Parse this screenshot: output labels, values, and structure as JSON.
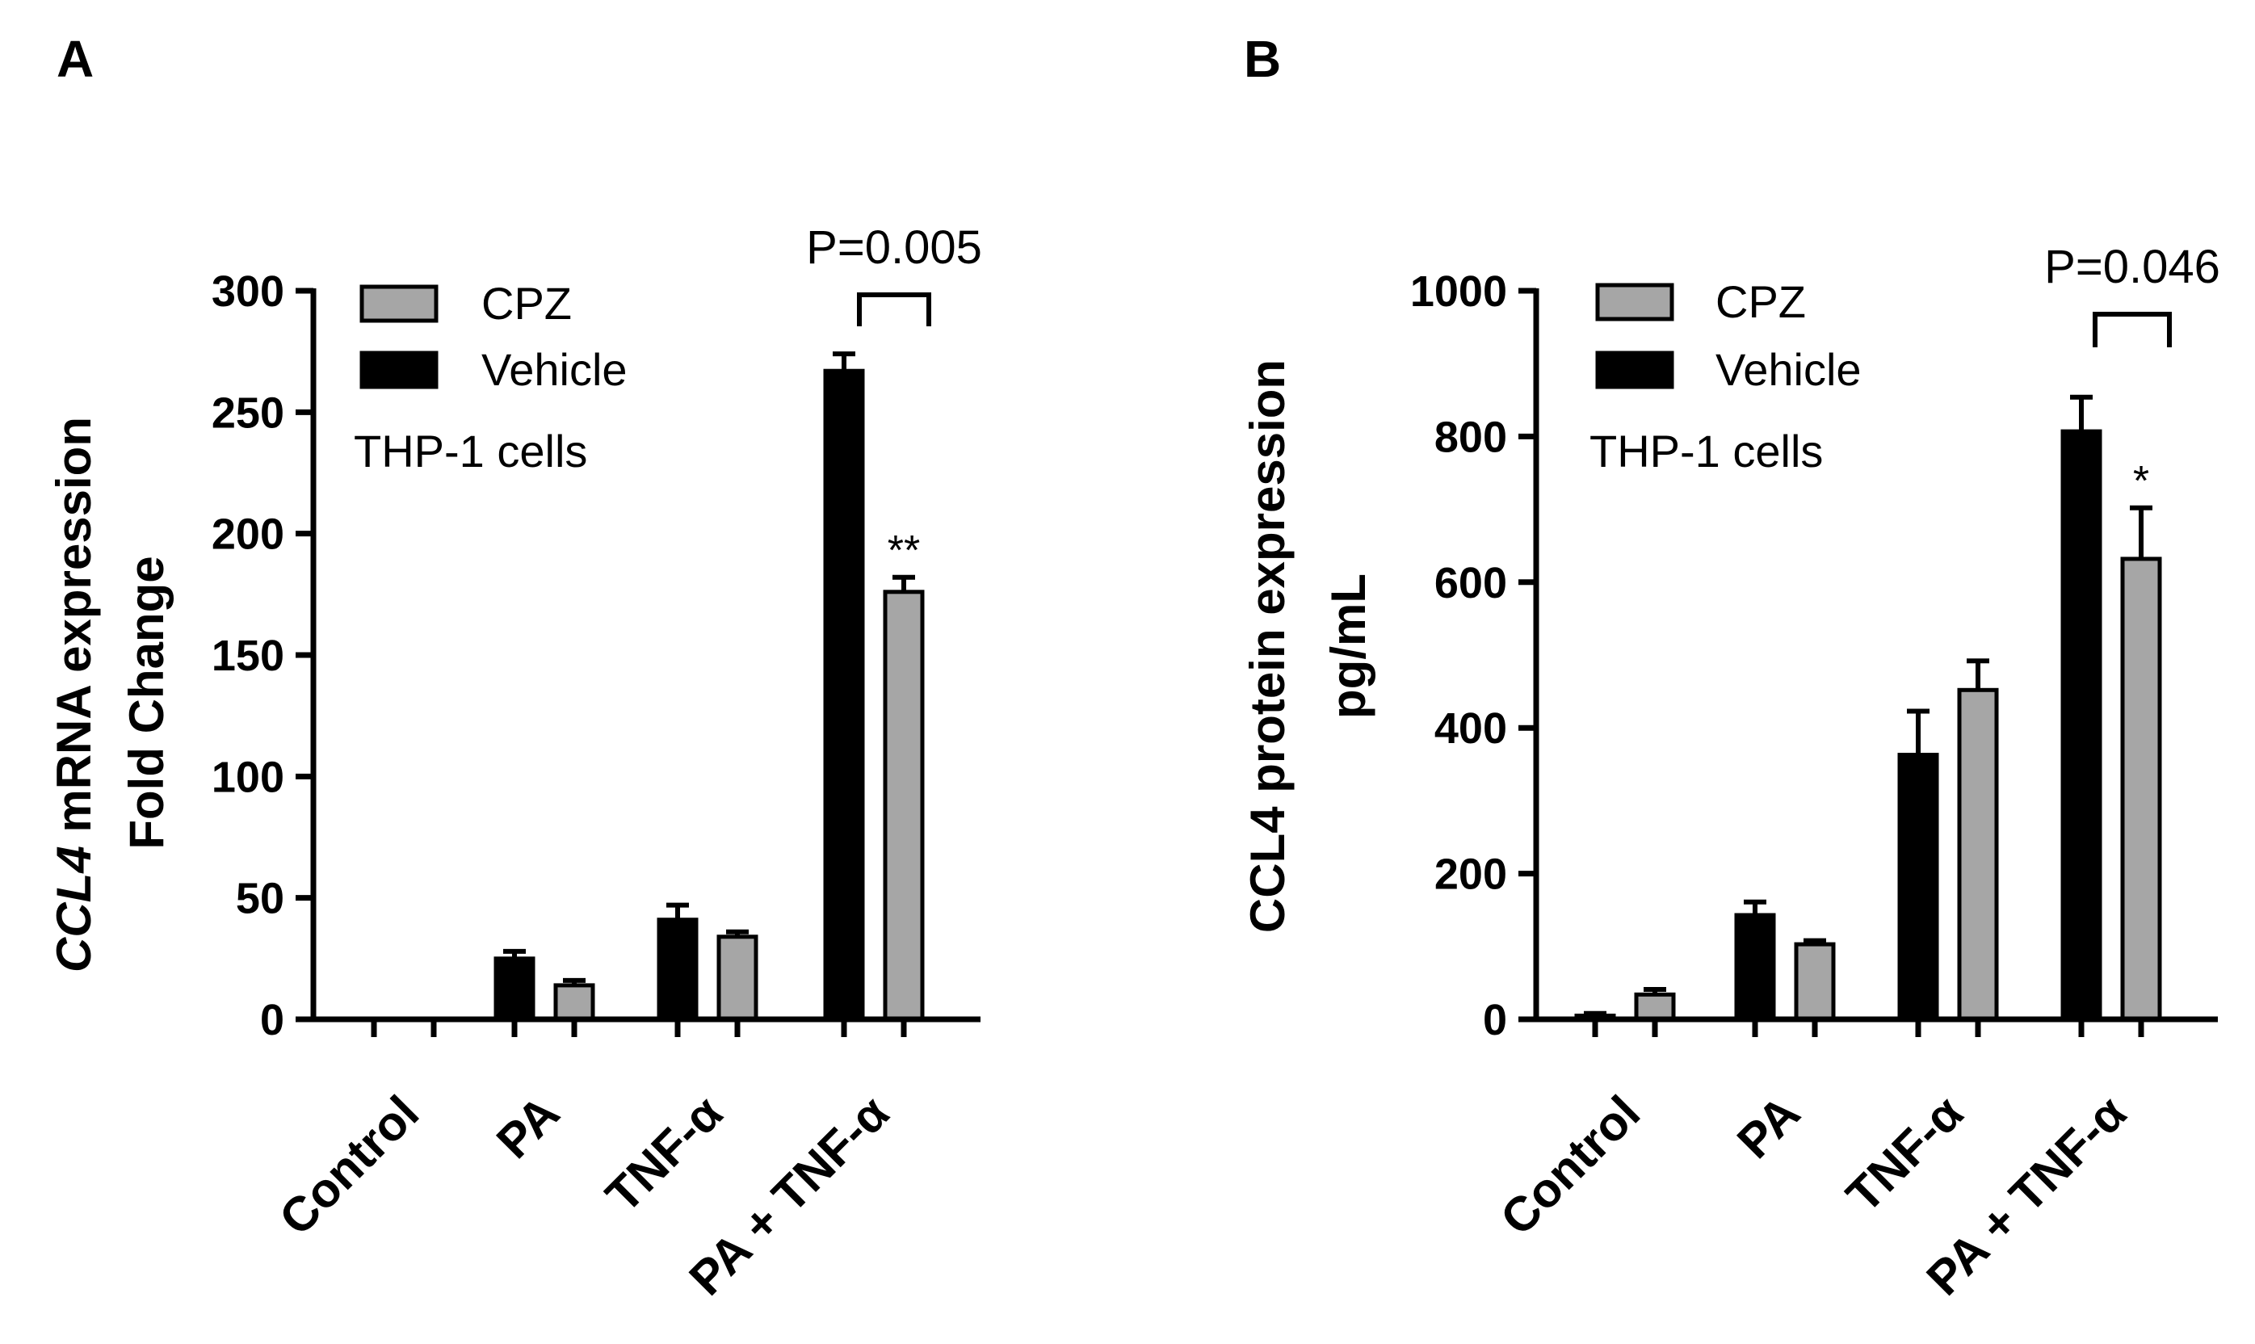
{
  "colors": {
    "vehicle": "#000000",
    "cpz": "#a6a6a6",
    "axis": "#000000"
  },
  "chart_data": [
    {
      "panel_label": "A",
      "type": "bar",
      "categories": [
        "Control",
        "PA",
        "TNF-α",
        "PA + TNF-α"
      ],
      "series": [
        {
          "name": "Vehicle",
          "values": [
            0,
            25,
            41,
            267
          ],
          "errors": [
            0,
            3,
            6,
            7
          ]
        },
        {
          "name": "CPZ",
          "values": [
            0,
            14,
            34,
            176
          ],
          "errors": [
            0,
            2,
            2,
            6
          ]
        }
      ],
      "ylabel_italic": "CCL4",
      "ylabel_rest": " mRNA expression",
      "ylabel_line2": "Fold Change",
      "ylim": [
        0,
        300
      ],
      "yticks": [
        "0",
        "50",
        "100",
        "150",
        "200",
        "250",
        "300"
      ],
      "legend": {
        "placement": "top-left",
        "entries": [
          "CPZ",
          "Vehicle"
        ]
      },
      "note": "THP-1 cells",
      "annotations": {
        "pvalue": "P=0.005",
        "pvalue_category": 3,
        "star": "**",
        "star_category": 3
      }
    },
    {
      "panel_label": "B",
      "type": "bar",
      "categories": [
        "Control",
        "PA",
        "TNF-α",
        "PA + TNF-α"
      ],
      "series": [
        {
          "name": "Vehicle",
          "values": [
            5,
            143,
            363,
            807
          ],
          "errors": [
            3,
            18,
            60,
            47
          ]
        },
        {
          "name": "CPZ",
          "values": [
            34,
            103,
            452,
            632
          ],
          "errors": [
            7,
            5,
            40,
            70
          ]
        }
      ],
      "ylabel_line1": "CCL4 protein expression",
      "ylabel_line2": "pg/mL",
      "ylim": [
        0,
        1000
      ],
      "yticks": [
        "0",
        "200",
        "400",
        "600",
        "800",
        "1000"
      ],
      "legend": {
        "placement": "top-left",
        "entries": [
          "CPZ",
          "Vehicle"
        ]
      },
      "note": "THP-1 cells",
      "annotations": {
        "pvalue": "P=0.046",
        "pvalue_category": 3,
        "star": "*",
        "star_category": 3
      }
    }
  ]
}
